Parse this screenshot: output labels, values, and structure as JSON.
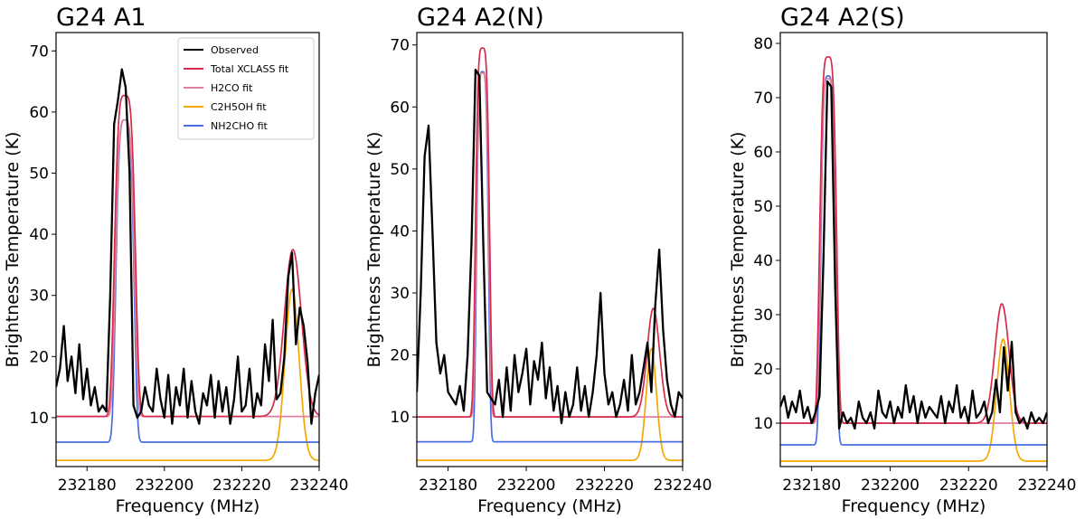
{
  "chart_data": [
    {
      "type": "line",
      "title": "G24 A1",
      "xlabel": "Frequency (MHz)",
      "ylabel": "Brightness Temperature (K)",
      "xlim": [
        232172,
        232240
      ],
      "ylim": [
        2,
        73
      ],
      "xticks": [
        232180,
        232200,
        232220,
        232240
      ],
      "xtick_labels": [
        "232180",
        "232200",
        "232220",
        "232240"
      ],
      "yticks": [
        10,
        20,
        30,
        40,
        50,
        60,
        70
      ],
      "ytick_labels": [
        "10",
        "20",
        "30",
        "40",
        "50",
        "60",
        "70"
      ],
      "legend": {
        "position": "top-right",
        "entries": [
          "Observed",
          "Total XCLASS fit",
          "H2CO fit",
          "C2H5OH fit",
          "NH2CHO fit"
        ]
      },
      "series": [
        {
          "name": "Observed",
          "color": "#000000",
          "x": [
            232172,
            232173,
            232174,
            232175,
            232176,
            232177,
            232178,
            232179,
            232180,
            232181,
            232182,
            232183,
            232184,
            232185,
            232186,
            232187,
            232188,
            232189,
            232190,
            232191,
            232192,
            232193,
            232194,
            232195,
            232196,
            232197,
            232198,
            232199,
            232200,
            232201,
            232202,
            232203,
            232204,
            232205,
            232206,
            232207,
            232208,
            232209,
            232210,
            232211,
            232212,
            232213,
            232214,
            232215,
            232216,
            232217,
            232218,
            232219,
            232220,
            232221,
            232222,
            232223,
            232224,
            232225,
            232226,
            232227,
            232228,
            232229,
            232230,
            232231,
            232232,
            232233,
            232234,
            232235,
            232236,
            232237,
            232238,
            232239,
            232240
          ],
          "values": [
            15,
            18,
            25,
            16,
            20,
            14,
            22,
            13,
            18,
            12,
            15,
            11,
            12,
            11,
            30,
            58,
            62,
            67,
            64,
            50,
            12,
            10,
            11,
            15,
            12,
            11,
            18,
            13,
            10,
            17,
            9,
            15,
            12,
            18,
            10,
            16,
            11,
            9,
            14,
            12,
            17,
            10,
            16,
            11,
            15,
            9,
            13,
            20,
            11,
            12,
            18,
            10,
            14,
            12,
            22,
            16,
            26,
            13,
            14,
            20,
            33,
            37,
            22,
            28,
            25,
            19,
            9,
            14,
            17
          ]
        },
        {
          "name": "Total XCLASS fit",
          "color": "#d62c4a",
          "center": 232189.8,
          "width": 3.0,
          "height": 52.5,
          "sharpness": 4,
          "baseline": 10.2,
          "peak2": {
            "center": 232233.2,
            "sigma": 2.2,
            "height": 27.3
          }
        },
        {
          "name": "H2CO fit",
          "color": "#e07fa0",
          "center": 232189.8,
          "width": 2.7,
          "height": 48.5,
          "sharpness": 4,
          "baseline": 10.2
        },
        {
          "name": "C2H5OH fit",
          "color": "#f5a800",
          "baseline": 3,
          "peak": {
            "center": 232233.0,
            "sigma": 1.8,
            "height": 28.0
          }
        },
        {
          "name": "NH2CHO fit",
          "color": "#4a6ee0",
          "center": 232189.8,
          "width": 2.6,
          "height": 52.7,
          "sharpness": 4,
          "baseline": 6
        }
      ]
    },
    {
      "type": "line",
      "title": "G24 A2(N)",
      "xlabel": "Frequency (MHz)",
      "ylabel": "Brightness Temperature (K)",
      "xlim": [
        232172,
        232240
      ],
      "ylim": [
        2,
        72
      ],
      "xticks": [
        232180,
        232200,
        232220,
        232240
      ],
      "xtick_labels": [
        "232180",
        "232200",
        "232220",
        "232240"
      ],
      "yticks": [
        10,
        20,
        30,
        40,
        50,
        60,
        70
      ],
      "ytick_labels": [
        "10",
        "20",
        "30",
        "40",
        "50",
        "60",
        "70"
      ],
      "series": [
        {
          "name": "Observed",
          "color": "#000000",
          "x": [
            232172,
            232173,
            232174,
            232175,
            232176,
            232177,
            232178,
            232179,
            232180,
            232181,
            232182,
            232183,
            232184,
            232185,
            232186,
            232187,
            232188,
            232189,
            232190,
            232191,
            232192,
            232193,
            232194,
            232195,
            232196,
            232197,
            232198,
            232199,
            232200,
            232201,
            232202,
            232203,
            232204,
            232205,
            232206,
            232207,
            232208,
            232209,
            232210,
            232211,
            232212,
            232213,
            232214,
            232215,
            232216,
            232217,
            232218,
            232219,
            232220,
            232221,
            232222,
            232223,
            232224,
            232225,
            232226,
            232227,
            232228,
            232229,
            232230,
            232231,
            232232,
            232233,
            232234,
            232235,
            232236,
            232237,
            232238,
            232239,
            232240
          ],
          "values": [
            14,
            30,
            52,
            57,
            40,
            22,
            17,
            20,
            14,
            13,
            12,
            15,
            11,
            20,
            38,
            66,
            65,
            38,
            14,
            13,
            12,
            16,
            10,
            18,
            11,
            20,
            14,
            17,
            21,
            12,
            19,
            16,
            22,
            13,
            18,
            11,
            15,
            9,
            14,
            10,
            12,
            18,
            11,
            15,
            10,
            14,
            20,
            30,
            17,
            12,
            14,
            10,
            12,
            16,
            11,
            20,
            12,
            14,
            18,
            22,
            14,
            28,
            37,
            24,
            16,
            12,
            10,
            14,
            13
          ]
        },
        {
          "name": "Total XCLASS fit",
          "color": "#d62c4a",
          "center": 232188.8,
          "width": 2.0,
          "height": 59.5,
          "sharpness": 4,
          "baseline": 10,
          "peak2": {
            "center": 232232.5,
            "sigma": 1.6,
            "height": 17.5
          }
        },
        {
          "name": "H2CO fit",
          "color": "#e07fa0",
          "center": 232188.8,
          "width": 1.8,
          "height": 55.5,
          "sharpness": 4,
          "baseline": 10
        },
        {
          "name": "C2H5OH fit",
          "color": "#f5a800",
          "baseline": 3,
          "peak": {
            "center": 232232.0,
            "sigma": 1.3,
            "height": 18.0
          }
        },
        {
          "name": "NH2CHO fit",
          "color": "#4a6ee0",
          "center": 232188.8,
          "width": 1.7,
          "height": 59.7,
          "sharpness": 4,
          "baseline": 6
        }
      ]
    },
    {
      "type": "line",
      "title": "G24 A2(S)",
      "xlabel": "Frequency (MHz)",
      "ylabel": "Brightness Temperature (K)",
      "xlim": [
        232172,
        232240
      ],
      "ylim": [
        2,
        82
      ],
      "xticks": [
        232180,
        232200,
        232220,
        232240
      ],
      "xtick_labels": [
        "232180",
        "232200",
        "232220",
        "232240"
      ],
      "yticks": [
        10,
        20,
        30,
        40,
        50,
        60,
        70,
        80
      ],
      "ytick_labels": [
        "10",
        "20",
        "30",
        "40",
        "50",
        "60",
        "70",
        "80"
      ],
      "series": [
        {
          "name": "Observed",
          "color": "#000000",
          "x": [
            232172,
            232173,
            232174,
            232175,
            232176,
            232177,
            232178,
            232179,
            232180,
            232181,
            232182,
            232183,
            232184,
            232185,
            232186,
            232187,
            232188,
            232189,
            232190,
            232191,
            232192,
            232193,
            232194,
            232195,
            232196,
            232197,
            232198,
            232199,
            232200,
            232201,
            232202,
            232203,
            232204,
            232205,
            232206,
            232207,
            232208,
            232209,
            232210,
            232211,
            232212,
            232213,
            232214,
            232215,
            232216,
            232217,
            232218,
            232219,
            232220,
            232221,
            232222,
            232223,
            232224,
            232225,
            232226,
            232227,
            232228,
            232229,
            232230,
            232231,
            232232,
            232233,
            232234,
            232235,
            232236,
            232237,
            232238,
            232239,
            232240
          ],
          "values": [
            13,
            15,
            11,
            14,
            12,
            16,
            11,
            13,
            10,
            12,
            15,
            40,
            73,
            72,
            35,
            9,
            12,
            10,
            11,
            9,
            14,
            11,
            10,
            12,
            9,
            16,
            12,
            11,
            14,
            10,
            13,
            11,
            17,
            12,
            15,
            10,
            14,
            11,
            13,
            12,
            11,
            15,
            10,
            14,
            12,
            17,
            11,
            13,
            10,
            16,
            11,
            12,
            14,
            10,
            12,
            18,
            12,
            24,
            16,
            25,
            12,
            10,
            11,
            9,
            12,
            10,
            11,
            10,
            12
          ]
        },
        {
          "name": "Total XCLASS fit",
          "color": "#d62c4a",
          "center": 232184.2,
          "width": 2.4,
          "height": 67.5,
          "sharpness": 4,
          "baseline": 10,
          "peak2": {
            "center": 232228.5,
            "sigma": 1.8,
            "height": 22.0
          }
        },
        {
          "name": "H2CO fit",
          "color": "#e07fa0",
          "center": 232184.2,
          "width": 2.2,
          "height": 63.5,
          "sharpness": 4,
          "baseline": 10
        },
        {
          "name": "C2H5OH fit",
          "color": "#f5a800",
          "baseline": 3,
          "peak": {
            "center": 232228.8,
            "sigma": 1.6,
            "height": 22.5
          }
        },
        {
          "name": "NH2CHO fit",
          "color": "#4a6ee0",
          "center": 232184.2,
          "width": 2.1,
          "height": 68.0,
          "sharpness": 4,
          "baseline": 6
        }
      ]
    }
  ]
}
